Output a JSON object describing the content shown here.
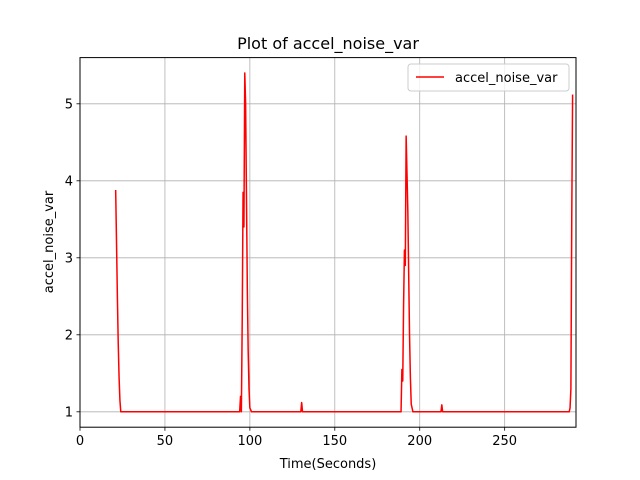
{
  "chart_data": {
    "type": "line",
    "title": "Plot of accel_noise_var",
    "xlabel": "Time(Seconds)",
    "ylabel": "accel_noise_var",
    "xlim": [
      0,
      292
    ],
    "ylim": [
      0.8,
      5.6
    ],
    "xticks": [
      0,
      50,
      100,
      150,
      200,
      250
    ],
    "yticks": [
      1,
      2,
      3,
      4,
      5
    ],
    "grid": true,
    "legend_position": "top-right",
    "series": [
      {
        "name": "accel_noise_var",
        "color": "#ff0000",
        "points": [
          [
            21,
            3.88
          ],
          [
            21.5,
            3.2
          ],
          [
            22,
            2.5
          ],
          [
            22.5,
            1.9
          ],
          [
            23,
            1.45
          ],
          [
            23.5,
            1.15
          ],
          [
            24,
            1.0
          ],
          [
            94,
            1.0
          ],
          [
            94.5,
            1.2
          ],
          [
            95,
            1.0
          ],
          [
            95.5,
            2.2
          ],
          [
            96,
            3.85
          ],
          [
            96.5,
            3.4
          ],
          [
            97,
            5.4
          ],
          [
            97.5,
            5.0
          ],
          [
            98,
            3.8
          ],
          [
            98.5,
            2.6
          ],
          [
            99,
            1.8
          ],
          [
            99.5,
            1.3
          ],
          [
            100,
            1.05
          ],
          [
            101,
            1.0
          ],
          [
            130,
            1.0
          ],
          [
            130.5,
            1.12
          ],
          [
            131,
            1.0
          ],
          [
            189,
            1.0
          ],
          [
            189.5,
            1.55
          ],
          [
            190,
            1.4
          ],
          [
            190.5,
            2.4
          ],
          [
            191,
            3.1
          ],
          [
            191.5,
            2.9
          ],
          [
            192,
            4.58
          ],
          [
            192.5,
            4.1
          ],
          [
            193,
            3.6
          ],
          [
            193.5,
            2.8
          ],
          [
            194,
            2.0
          ],
          [
            194.5,
            1.45
          ],
          [
            195,
            1.1
          ],
          [
            196,
            1.0
          ],
          [
            212.5,
            1.0
          ],
          [
            213,
            1.09
          ],
          [
            213.5,
            1.0
          ],
          [
            288,
            1.0
          ],
          [
            288.5,
            1.05
          ],
          [
            289,
            1.3
          ],
          [
            289.5,
            3.5
          ],
          [
            290,
            5.12
          ]
        ]
      }
    ]
  }
}
